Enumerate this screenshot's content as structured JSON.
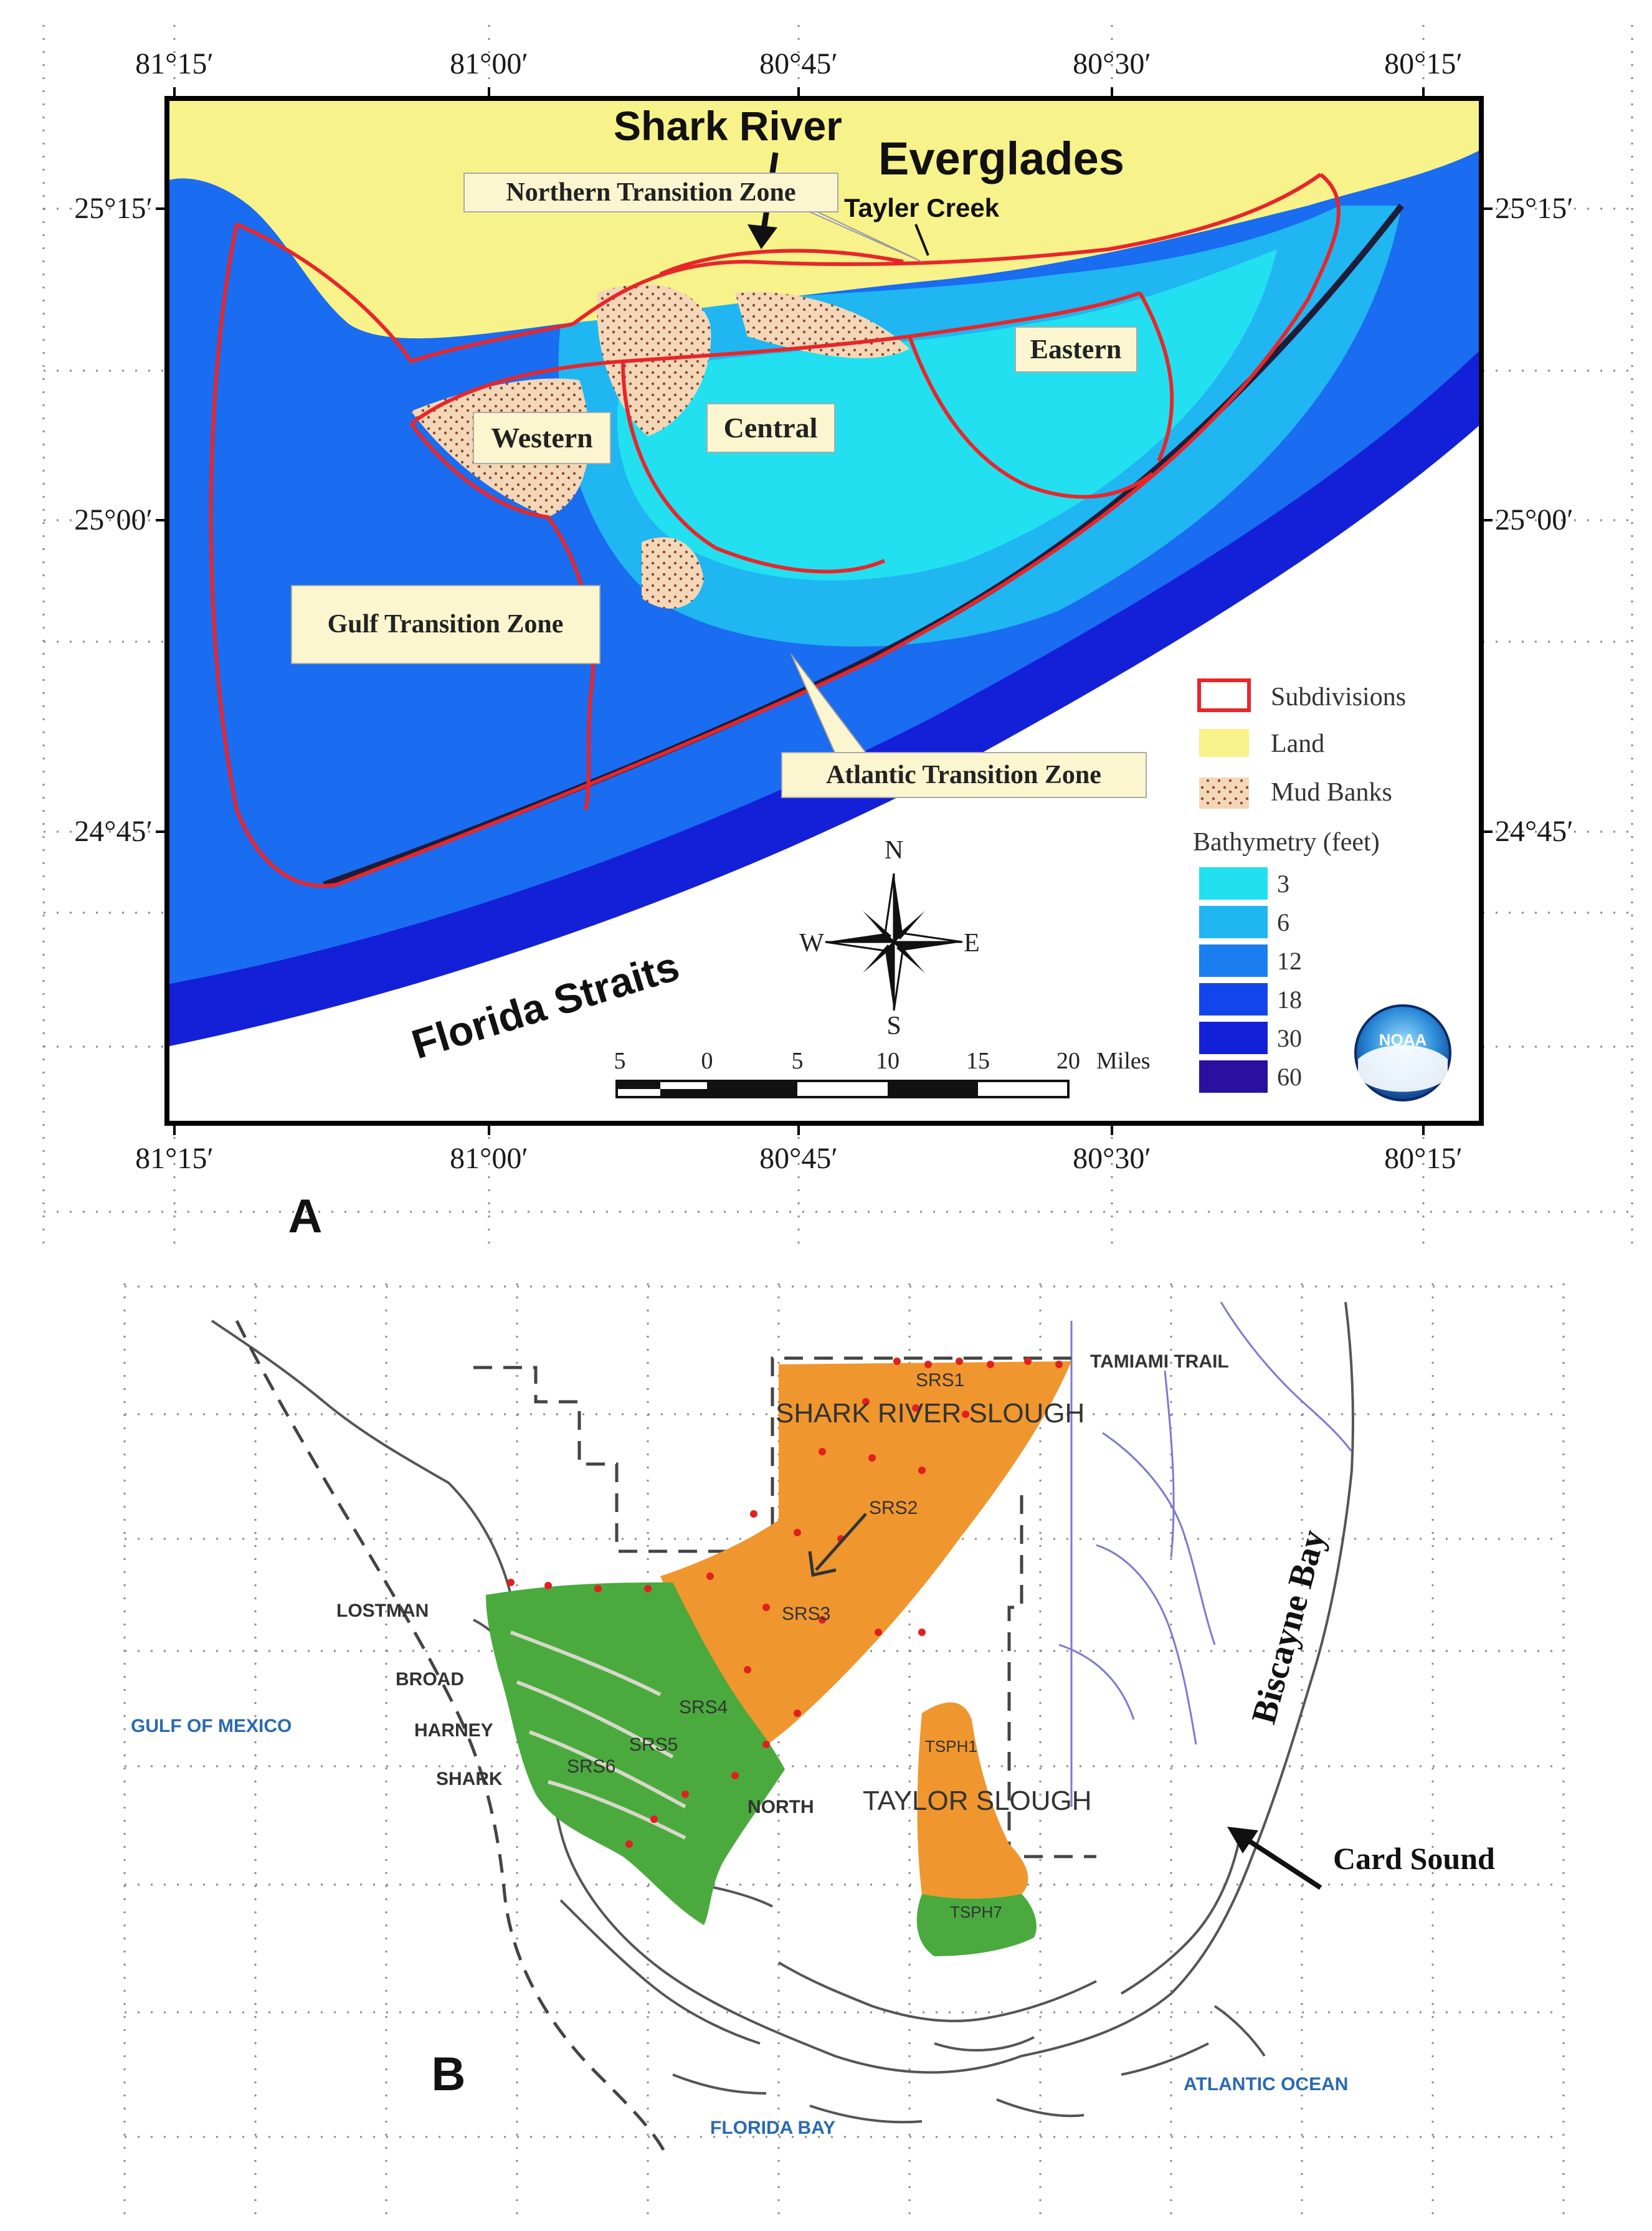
{
  "panel_a": {
    "panel_label": "A",
    "top_lon_labels": [
      "81°15′",
      "81°00′",
      "80°45′",
      "80°30′",
      "80°15′"
    ],
    "bottom_lon_labels": [
      "81°15′",
      "81°00′",
      "80°45′",
      "80°30′",
      "80°15′"
    ],
    "left_lat_labels": [
      "25°15′",
      "25°00′",
      "24°45′"
    ],
    "right_lat_labels": [
      "25°15′",
      "25°00′",
      "24°45′"
    ],
    "place_labels": {
      "shark_river": "Shark River",
      "everglades": "Everglades",
      "tayler_creek": "Tayler Creek",
      "florida_straits": "Florida Straits"
    },
    "zone_labels": {
      "northern": "Northern Transition Zone",
      "eastern": "Eastern",
      "western": "Western",
      "central": "Central",
      "gulf": "Gulf Transition Zone",
      "atlantic": "Atlantic Transition Zone"
    },
    "compass": {
      "n": "N",
      "s": "S",
      "e": "E",
      "w": "W"
    },
    "scale_bar": {
      "ticks": [
        "5",
        "0",
        "5",
        "10",
        "15",
        "20"
      ],
      "unit": "Miles"
    },
    "legend": {
      "subdivisions": "Subdivisions",
      "land": "Land",
      "mud_banks": "Mud Banks",
      "bathymetry_title": "Bathymetry (feet)",
      "bathymetry_levels": [
        {
          "label": "3",
          "color": "#22e0f0"
        },
        {
          "label": "6",
          "color": "#1fb6f2"
        },
        {
          "label": "12",
          "color": "#1a7df0"
        },
        {
          "label": "18",
          "color": "#1246ea"
        },
        {
          "label": "30",
          "color": "#1420d8"
        },
        {
          "label": "60",
          "color": "#2a10a0"
        }
      ]
    },
    "logo_text": "NOAA",
    "colors": {
      "land": "#f7f28a",
      "subdivision_outline": "#e8262a",
      "deep_water": "#1420d8",
      "ocean": "#1a6cf0"
    }
  },
  "panel_b": {
    "panel_label": "B",
    "labels": {
      "tamiami_trail": "TAMIAMI TRAIL",
      "shark_river_slough": "SHARK RIVER SLOUGH",
      "srs1": "SRS1",
      "srs2": "SRS2",
      "srs3": "SRS3",
      "srs4": "SRS4",
      "srs5": "SRS5",
      "srs6": "SRS6",
      "lostman": "LOSTMAN",
      "broad": "BROAD",
      "harney": "HARNEY",
      "shark": "SHARK",
      "north": "NORTH",
      "gulf_of_mexico": "GULF OF MEXICO",
      "taylor_slough": "TAYLOR SLOUGH",
      "tsph1": "TSPH1",
      "tsph7": "TSPH7",
      "biscayne_bay": "Biscayne Bay",
      "card_sound": "Card Sound",
      "atlantic_ocean": "ATLANTIC OCEAN",
      "florida_bay": "FLORIDA BAY"
    },
    "colors": {
      "slough": "#f0962e",
      "mangrove": "#4aaa3e",
      "station_dot": "#e02020",
      "ocean_label": "#2a6ab0"
    }
  }
}
